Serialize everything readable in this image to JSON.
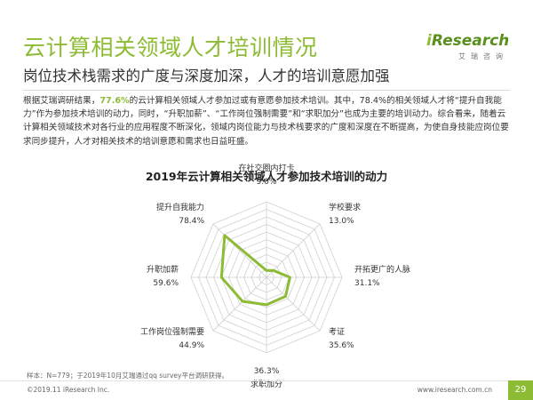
{
  "title": "云计算相关领域人才培训情况",
  "subtitle": "岗位技术栈需求的广度与深度加深，人才的培训意愿加强",
  "logo": {
    "main_prefix": "i",
    "main_rest": "Research",
    "sub": "艾瑞咨询"
  },
  "paragraph": {
    "pre": "根据艾瑞调研结果，",
    "highlight": "77.6%",
    "post": "的云计算相关领域人才参加过或有意愿参加技术培训。其中，78.4%的相关领域人才将“提升自我能力”作为参加技术培训的动力，同时，“升职加薪”、“工作岗位强制需要”和“求职加分”也成为主要的培训动力。综合看来，随着云计算相关领域技术对各行业的应用程度不断深化，领域内岗位能力与技术栈要求的广度和深度在不断提高，为使自身技能应岗位要求同步提升，人才对相关技术的培训意愿和需求也日益旺盛。"
  },
  "chart_data": {
    "type": "radar",
    "title": "2019年云计算相关领域人才参加技术培训的动力",
    "unit": "%",
    "max": 100,
    "rings": 10,
    "categories": [
      "在社交圈内打卡",
      "学校要求",
      "开拓更广的人脉",
      "考证",
      "求职加分",
      "工作岗位强制需要",
      "升职加薪",
      "提升自我能力"
    ],
    "values": [
      9.0,
      13.0,
      31.1,
      35.6,
      36.3,
      44.9,
      59.6,
      78.4
    ],
    "value_labels": [
      "9.0%",
      "13.0%",
      "31.1%",
      "35.6%",
      "36.3%",
      "44.9%",
      "59.6%",
      "78.4%"
    ],
    "series_color": "#8dbb34",
    "grid_color": "#cfcfcf"
  },
  "footnote": "样本：N=779；于2019年10月艾瑞通过qq survey平台调研获得。",
  "footer": {
    "copyright": "©2019.11 iResearch Inc.",
    "website": "www.iresearch.com.cn",
    "page": "29"
  }
}
